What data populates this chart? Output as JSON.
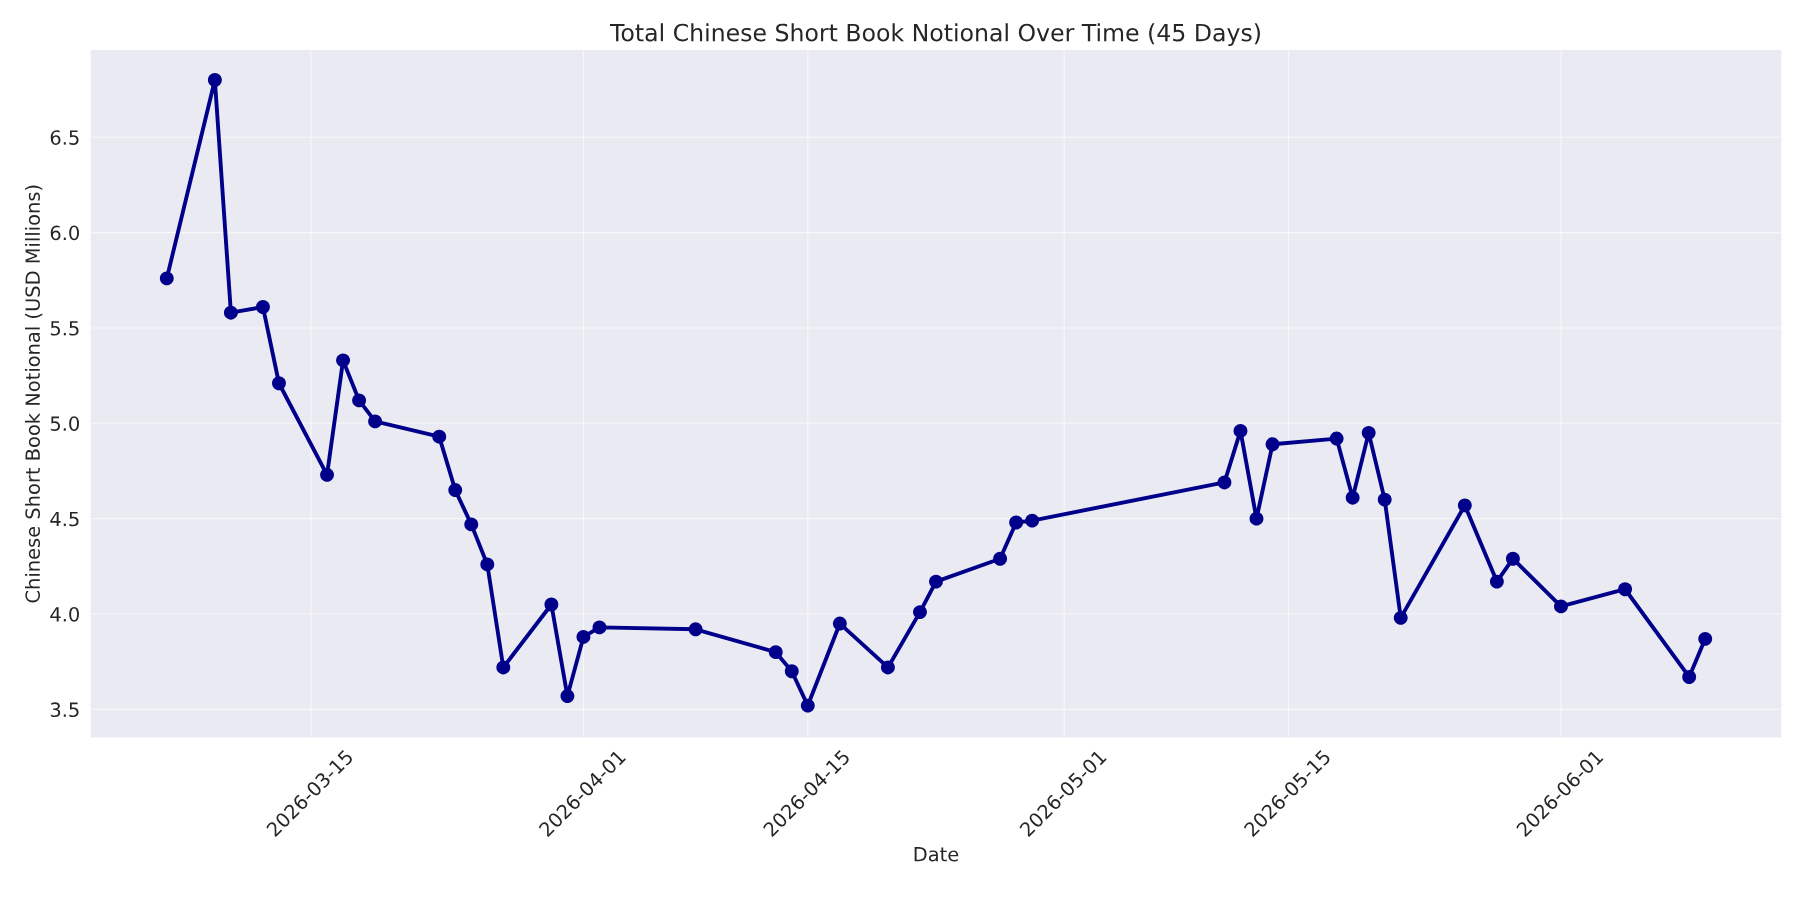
{
  "chart_data": {
    "type": "line",
    "title": "Total Chinese Short Book Notional Over Time (45 Days)",
    "xlabel": "Date",
    "ylabel": "Chinese Short Book Notional (USD Millions)",
    "x": [
      "2026-03-06",
      "2026-03-09",
      "2026-03-10",
      "2026-03-12",
      "2026-03-13",
      "2026-03-16",
      "2026-03-17",
      "2026-03-18",
      "2026-03-19",
      "2026-03-23",
      "2026-03-24",
      "2026-03-25",
      "2026-03-26",
      "2026-03-27",
      "2026-03-30",
      "2026-03-31",
      "2026-04-01",
      "2026-04-02",
      "2026-04-08",
      "2026-04-13",
      "2026-04-14",
      "2026-04-15",
      "2026-04-17",
      "2026-04-20",
      "2026-04-22",
      "2026-04-23",
      "2026-04-27",
      "2026-04-28",
      "2026-04-29",
      "2026-05-11",
      "2026-05-12",
      "2026-05-13",
      "2026-05-14",
      "2026-05-18",
      "2026-05-19",
      "2026-05-20",
      "2026-05-21",
      "2026-05-22",
      "2026-05-26",
      "2026-05-28",
      "2026-05-29",
      "2026-06-01",
      "2026-06-05",
      "2026-06-09",
      "2026-06-10"
    ],
    "series": [
      {
        "color": "#00008b",
        "values": [
          5.76,
          6.8,
          5.58,
          5.61,
          5.21,
          4.73,
          5.33,
          5.12,
          5.01,
          4.93,
          4.65,
          4.47,
          4.26,
          3.72,
          4.05,
          3.57,
          3.88,
          3.93,
          3.92,
          3.8,
          3.7,
          3.52,
          3.95,
          3.72,
          4.01,
          4.17,
          4.29,
          4.48,
          4.49,
          4.69,
          4.96,
          4.5,
          4.89,
          4.92,
          4.61,
          4.95,
          4.6,
          3.98,
          4.57,
          4.17,
          4.29,
          4.04,
          4.13,
          3.67,
          3.87
        ]
      }
    ],
    "xlim": [
      "2026-03-01T05:00",
      "2026-06-14T19:00"
    ],
    "xticks": [
      "2026-03-15",
      "2026-04-01",
      "2026-04-15",
      "2026-05-01",
      "2026-05-15",
      "2026-06-01"
    ],
    "ylim": [
      3.35,
      6.96
    ],
    "yticks": [
      {
        "value": 3.5,
        "label": "3.5"
      },
      {
        "value": 4,
        "label": "4.0"
      },
      {
        "value": 4.5,
        "label": "4.5"
      },
      {
        "value": 5,
        "label": "5.0"
      },
      {
        "value": 5.5,
        "label": "5.5"
      },
      {
        "value": 6,
        "label": "6.0"
      },
      {
        "value": 6.5,
        "label": "6.5"
      }
    ],
    "grid": true,
    "marker": "circle",
    "line_style": "solid"
  }
}
